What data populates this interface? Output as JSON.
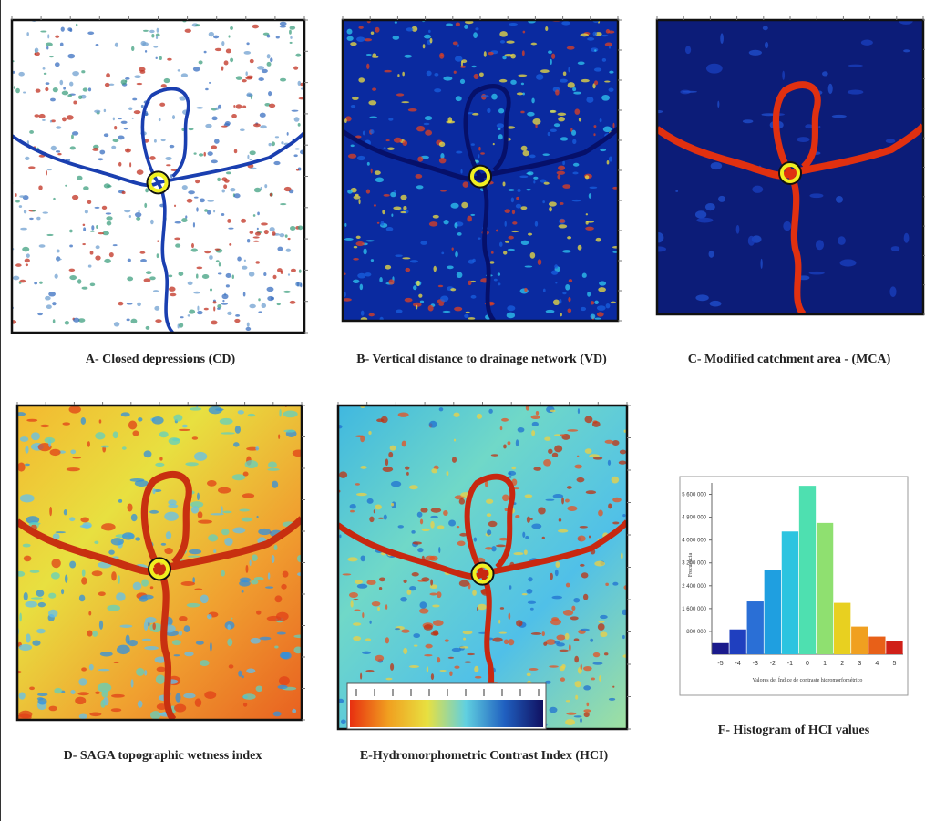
{
  "panels": [
    {
      "caption": "A- Closed depressions (CD)"
    },
    {
      "caption": "B- Vertical distance to drainage network (VD)"
    },
    {
      "caption": "C- Modified catchment area - (MCA)"
    },
    {
      "caption": "D- SAGA topographic wetness index"
    },
    {
      "caption": "E-Hydromorphometric Contrast Index (HCI)"
    },
    {
      "caption": "F- Histogram of HCI values"
    }
  ],
  "chart_data": {
    "type": "bar",
    "xlabel": "Valores del Índice de contraste hidromorfométrico",
    "ylabel": "Frecuencia",
    "categories": [
      "-5",
      "-4",
      "-3",
      "-2",
      "-1",
      "0",
      "1",
      "2",
      "3",
      "4",
      "5"
    ],
    "values": [
      390000,
      870000,
      1850000,
      2950000,
      4300000,
      5900000,
      4600000,
      1800000,
      970000,
      620000,
      450000
    ],
    "colors": [
      "#1a1a8c",
      "#1f3fbf",
      "#2a6fd6",
      "#1f9fe0",
      "#2cc4e0",
      "#4ee0b0",
      "#8fe070",
      "#e8d020",
      "#f0a020",
      "#e86018",
      "#d02018"
    ],
    "ylim": [
      0,
      6000000
    ],
    "yticks": [
      {
        "value": 800000,
        "label": "800 000"
      },
      {
        "value": 1600000,
        "label": "1 600 000"
      },
      {
        "value": 2400000,
        "label": "2 400 000"
      },
      {
        "value": 3200000,
        "label": "3 200 000"
      },
      {
        "value": 4000000,
        "label": "4 000 000"
      },
      {
        "value": 4800000,
        "label": "4 800 000"
      },
      {
        "value": 5600000,
        "label": "5 600 000"
      }
    ]
  }
}
